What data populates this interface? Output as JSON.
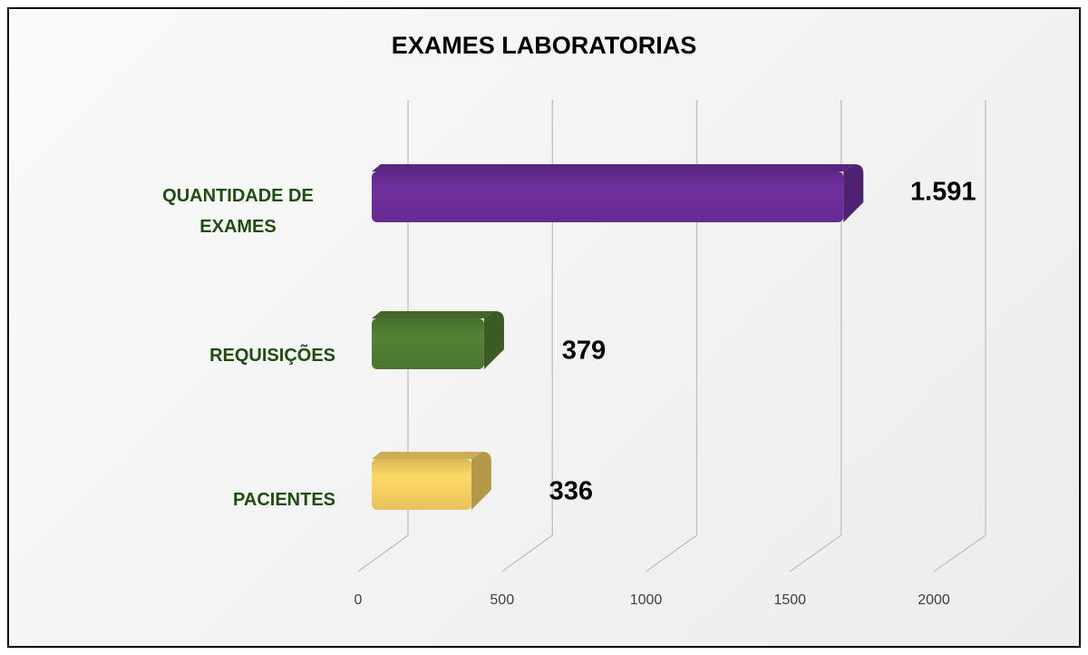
{
  "chart_data": {
    "type": "bar",
    "orientation": "horizontal",
    "title": "EXAMES LABORATORIAS",
    "categories": [
      "QUANTIDADE DE EXAMES",
      "REQUISIÇÕES",
      "PACIENTES"
    ],
    "series": [
      {
        "values": [
          1591,
          379,
          336
        ],
        "value_labels": [
          "1.591",
          "379",
          "336"
        ],
        "colors": [
          "#7030a0",
          "#548235",
          "#ffd966"
        ]
      }
    ],
    "xlim": [
      0,
      2000
    ],
    "xticks": [
      0,
      500,
      1000,
      1500,
      2000
    ],
    "grid": true
  }
}
